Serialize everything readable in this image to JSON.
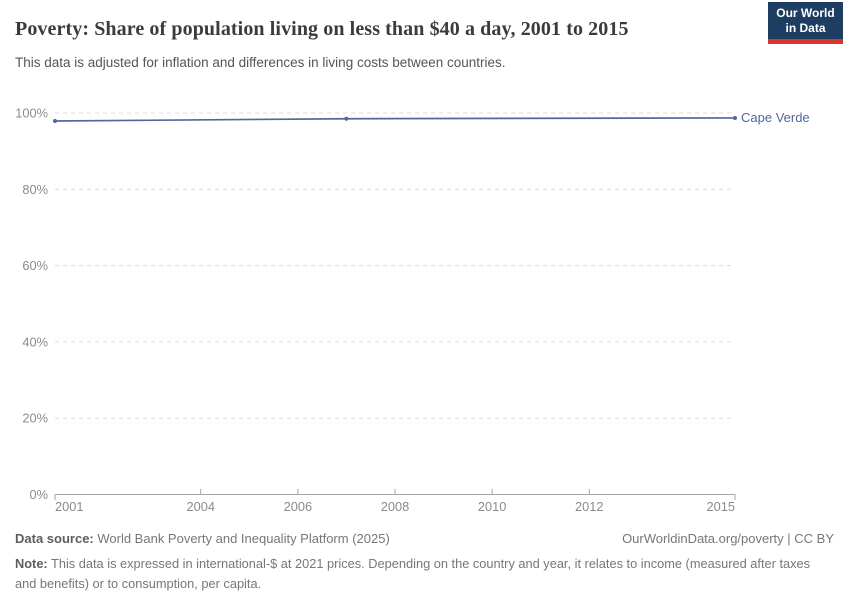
{
  "header": {
    "title": "Poverty: Share of population living on less than $40 a day, 2001 to 2015",
    "subtitle": "This data is adjusted for inflation and differences in living costs between countries.",
    "logo": {
      "line1": "Our World",
      "line2": "in Data"
    }
  },
  "chart_data": {
    "type": "line",
    "title": "Poverty: Share of population living on less than $40 a day, 2001 to 2015",
    "xlabel": "",
    "ylabel": "",
    "xlim": [
      2001,
      2015
    ],
    "ylim": [
      0,
      100
    ],
    "grid": "horizontal-dashed",
    "legend_position": "end-of-line-label",
    "x_ticks": [
      2001,
      2004,
      2006,
      2008,
      2010,
      2012,
      2015
    ],
    "x_tick_labels": [
      "2001",
      "2004",
      "2006",
      "2008",
      "2010",
      "2012",
      "2015"
    ],
    "y_ticks": [
      0,
      20,
      40,
      60,
      80,
      100
    ],
    "y_tick_labels": [
      "0%",
      "20%",
      "40%",
      "60%",
      "80%",
      "100%"
    ],
    "series": [
      {
        "name": "Cape Verde",
        "color": "#4C6A9C",
        "points": [
          [
            2001,
            97.9
          ],
          [
            2007,
            98.5
          ],
          [
            2015,
            98.7
          ]
        ]
      }
    ]
  },
  "footer": {
    "source_label": "Data source:",
    "source": " World Bank Poverty and Inequality Platform (2025)",
    "rights": "OurWorldinData.org/poverty | CC BY",
    "note_label": "Note:",
    "note": " This data is expressed in international-$ at 2021 prices. Depending on the country and year, it relates to income (measured after taxes and benefits) or to consumption, per capita."
  },
  "colors": {
    "line": "#4C6A9C",
    "grid": "#dcdcdc",
    "axis": "#a5a5a5",
    "tick_text": "#8b8b8b",
    "logo_bg": "#1d3d63",
    "logo_accent": "#d7352e"
  }
}
